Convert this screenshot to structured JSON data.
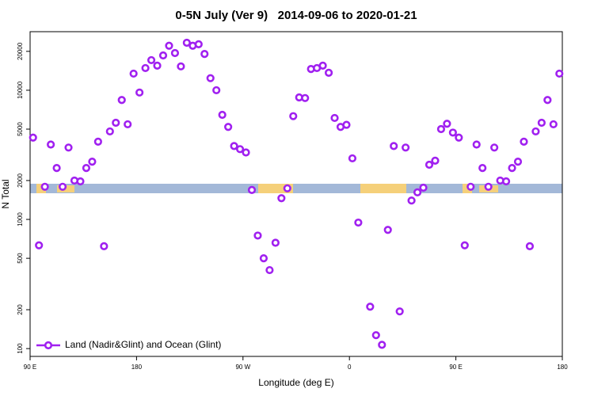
{
  "chart_data": {
    "type": "scatter",
    "title": "0-5N July (Ver 9)   2014-09-06 to 2020-01-21",
    "x_label": "Longitude (deg E)",
    "y_label": "N Total",
    "ylog": true,
    "legend": "bottom-left",
    "xlim": [
      90,
      540
    ],
    "ylim": [
      87,
      28400
    ],
    "xticks": [
      {
        "value": 90,
        "label": "90 E"
      },
      180,
      {
        "value": 270,
        "label": "90 W"
      },
      {
        "value": 360,
        "label": "0"
      },
      {
        "value": 450,
        "label": "90 E"
      },
      {
        "value": 540,
        "label": "180"
      }
    ],
    "yticks": [
      100,
      200,
      500,
      1000,
      2000,
      5000,
      10000,
      20000
    ],
    "x": [
      92.5,
      97.5,
      102.5,
      107.5,
      112.5,
      117.5,
      122.5,
      127.5,
      132.5,
      137.5,
      142.5,
      147.5,
      152.5,
      157.5,
      162.5,
      167.5,
      172.5,
      177.5,
      182.5,
      187.5,
      192.5,
      197.5,
      202.5,
      207.5,
      212.5,
      217.5,
      222.5,
      227.5,
      232.5,
      237.5,
      242.5,
      247.5,
      252.5,
      257.5,
      262.5,
      267.5,
      272.5,
      277.5,
      282.5,
      287.5,
      292.5,
      297.5,
      302.5,
      307.5,
      312.5,
      317.5,
      322.5,
      327.5,
      332.5,
      337.5,
      342.5,
      347.5,
      352.5,
      357.5,
      362.5,
      367.5,
      377.5,
      382.5,
      387.5,
      392.5,
      397.5,
      402.5,
      407.5,
      412.5,
      417.5,
      422.5,
      427.5,
      432.5,
      437.5,
      442.5,
      447.5,
      452.5,
      457.5,
      462.5,
      467.5,
      472.5,
      477.5,
      482.5,
      487.5,
      492.5,
      497.5,
      502.5,
      507.5,
      512.5,
      517.5,
      522.5,
      527.5,
      532.5,
      537.5
    ],
    "series": [
      {
        "name": "Land (Nadir&Glint) and Ocean (Glint)",
        "color": "#a020f0",
        "values": [
          4300,
          630,
          1790,
          3800,
          2500,
          1790,
          3600,
          2000,
          1970,
          2500,
          2800,
          4000,
          620,
          4800,
          5600,
          8400,
          5450,
          13450,
          9600,
          14850,
          17100,
          15500,
          18600,
          22100,
          19400,
          15300,
          23300,
          22100,
          22700,
          19100,
          12400,
          10000,
          6450,
          5200,
          3700,
          3500,
          3300,
          1690,
          750,
          500,
          405,
          660,
          1460,
          1740,
          6300,
          8800,
          8700,
          14600,
          14850,
          15500,
          13650,
          6100,
          5200,
          5400,
          2970,
          945,
          211,
          127,
          107,
          830,
          3700,
          194,
          3600,
          1400,
          1620,
          1760,
          2650,
          2850,
          5000,
          5500,
          4700,
          4300,
          630,
          1790,
          3800,
          2500,
          1790,
          3600,
          2000,
          1970,
          2500,
          2800,
          4000,
          620,
          4800,
          5600,
          8400,
          5450,
          13450
        ]
      }
    ]
  }
}
